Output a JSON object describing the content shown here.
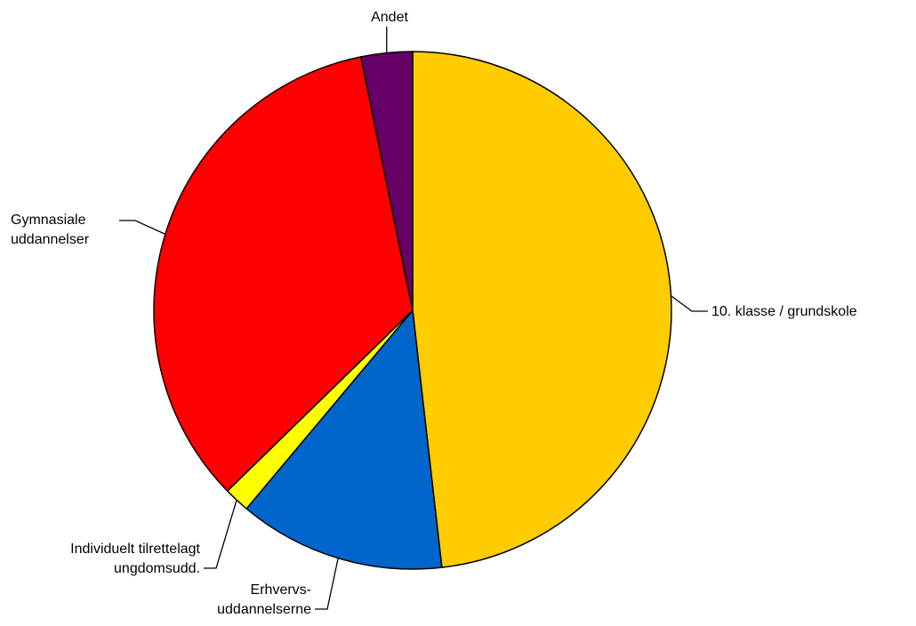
{
  "chart_data": {
    "type": "pie",
    "title": "",
    "start_angle_deg": 0,
    "direction": "clockwise",
    "slices": [
      {
        "label": [
          "10. klasse / grundskole"
        ],
        "value": 48.2,
        "color": "#FFCC00"
      },
      {
        "label": [
          "Erhvervs-",
          "uddannelserne"
        ],
        "value": 12.9,
        "color": "#0066CC"
      },
      {
        "label": [
          "Individuelt tilrettelagt",
          "ungdomsudd."
        ],
        "value": 1.6,
        "color": "#FFFF00"
      },
      {
        "label": [
          "Gymnasiale",
          "uddannelser"
        ],
        "value": 34.1,
        "color": "#FF0000"
      },
      {
        "label": [
          "Andet"
        ],
        "value": 3.2,
        "color": "#660066"
      }
    ]
  }
}
